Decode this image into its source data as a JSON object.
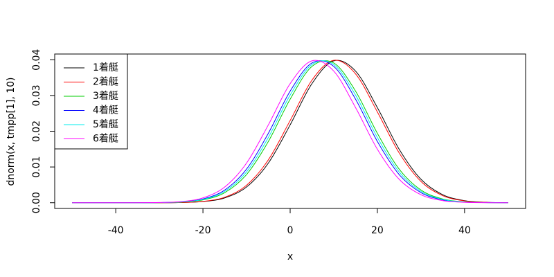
{
  "chart_data": {
    "type": "line",
    "xlabel": "x",
    "ylabel": "dnorm(x, tmpp[1], 10)",
    "x": [
      -50,
      -45,
      -40,
      -35,
      -30,
      -25,
      -20,
      -15,
      -10,
      -5,
      0,
      5,
      10,
      15,
      20,
      25,
      30,
      35,
      40,
      45,
      50
    ],
    "xlim": [
      -54,
      54
    ],
    "xticks": [
      -40,
      -20,
      0,
      20,
      40
    ],
    "ylim": [
      -0.0016,
      0.0416
    ],
    "yticks": [
      {
        "value": 0,
        "label": "0.00"
      },
      0.01,
      0.02,
      0.03,
      0.04
    ],
    "legend": "top-left",
    "series": [
      {
        "name": "1着艇",
        "color": "#000000",
        "values": [
          0,
          0,
          0,
          0,
          0,
          6e-05,
          0.00033,
          0.00136,
          0.0044,
          0.01109,
          0.02178,
          0.03332,
          0.03969,
          0.03682,
          0.02661,
          0.01497,
          0.00656,
          0.00224,
          0.00059,
          0.00012,
          2e-05
        ]
      },
      {
        "name": "2着艇",
        "color": "#ff0000",
        "values": [
          0,
          0,
          0,
          0,
          1e-05,
          7e-05,
          0.00038,
          0.00154,
          0.00488,
          0.012,
          0.02299,
          0.03429,
          0.03984,
          0.03605,
          0.02541,
          0.01394,
          0.00596,
          0.00198,
          0.00051,
          0.0001,
          2e-05
        ]
      },
      {
        "name": "3着艇",
        "color": "#00cd00",
        "values": [
          0,
          0,
          0,
          0,
          3e-05,
          0.00017,
          0.00079,
          0.00283,
          0.00789,
          0.01714,
          0.02897,
          0.03813,
          0.0391,
          0.03122,
          0.01942,
          0.0094,
          0.00355,
          0.00104,
          0.00024,
          4e-05,
          0
        ]
      },
      {
        "name": "4着艇",
        "color": "#0000ff",
        "values": [
          0,
          0,
          0,
          0,
          4e-05,
          0.00024,
          0.00104,
          0.00355,
          0.0094,
          0.01942,
          0.03122,
          0.0391,
          0.03813,
          0.02897,
          0.01714,
          0.00789,
          0.00283,
          0.00079,
          0.00017,
          3e-05,
          0
        ]
      },
      {
        "name": "5着艇",
        "color": "#00eeee",
        "values": [
          0,
          0,
          0,
          0,
          4e-05,
          0.0002,
          0.00091,
          0.00317,
          0.00863,
          0.01826,
          0.03011,
          0.03866,
          0.03866,
          0.03011,
          0.01826,
          0.00863,
          0.00317,
          0.00091,
          0.0002,
          4e-05,
          0
        ]
      },
      {
        "name": "6着艇",
        "color": "#ff00ff",
        "values": [
          0,
          0,
          0,
          1e-05,
          6e-05,
          0.00033,
          0.00136,
          0.0044,
          0.01109,
          0.02178,
          0.03332,
          0.03969,
          0.03682,
          0.02661,
          0.01497,
          0.00656,
          0.00224,
          0.00059,
          0.00012,
          2e-05,
          0
        ]
      }
    ]
  }
}
